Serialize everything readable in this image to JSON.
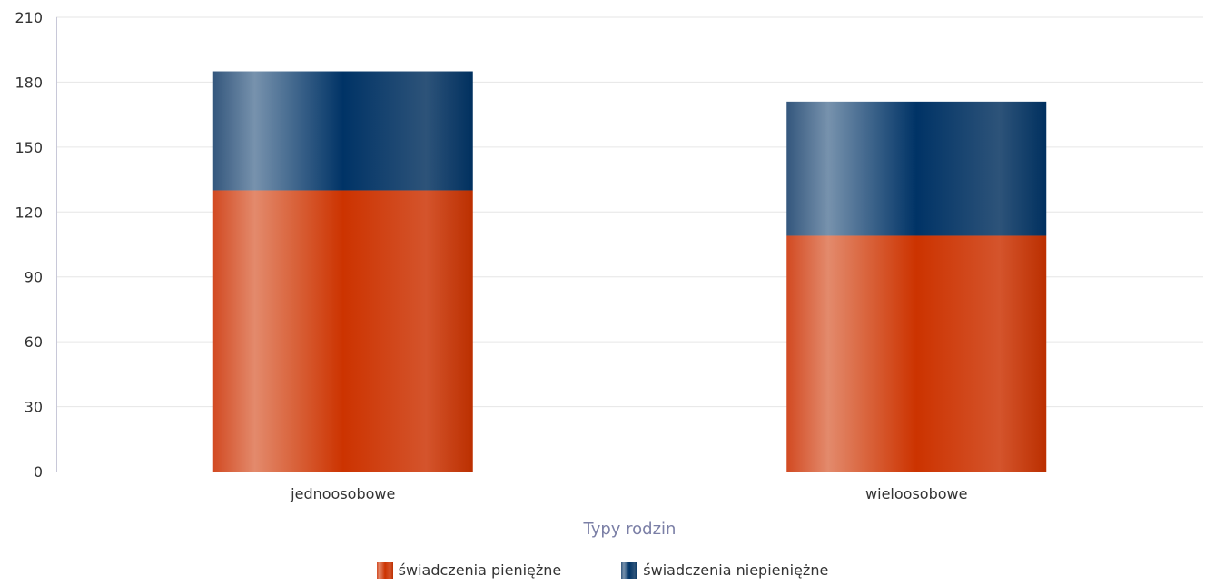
{
  "chart_data": {
    "type": "bar",
    "stacked": true,
    "categories": [
      "jednoosobowe",
      "wieloosobowe"
    ],
    "series": [
      {
        "name": "świadczenia pieniężne",
        "values": [
          130,
          109
        ],
        "color": "#cc3300"
      },
      {
        "name": "świadczenia niepieniężne",
        "values": [
          55,
          62
        ],
        "color": "#003366"
      }
    ],
    "xlabel": "Typy rodzin",
    "ylabel": "",
    "ylim": [
      0,
      210
    ],
    "yticks": [
      "0",
      "30",
      "60",
      "90",
      "120",
      "150",
      "180",
      "210"
    ],
    "grid": true,
    "legend_position": "bottom"
  }
}
